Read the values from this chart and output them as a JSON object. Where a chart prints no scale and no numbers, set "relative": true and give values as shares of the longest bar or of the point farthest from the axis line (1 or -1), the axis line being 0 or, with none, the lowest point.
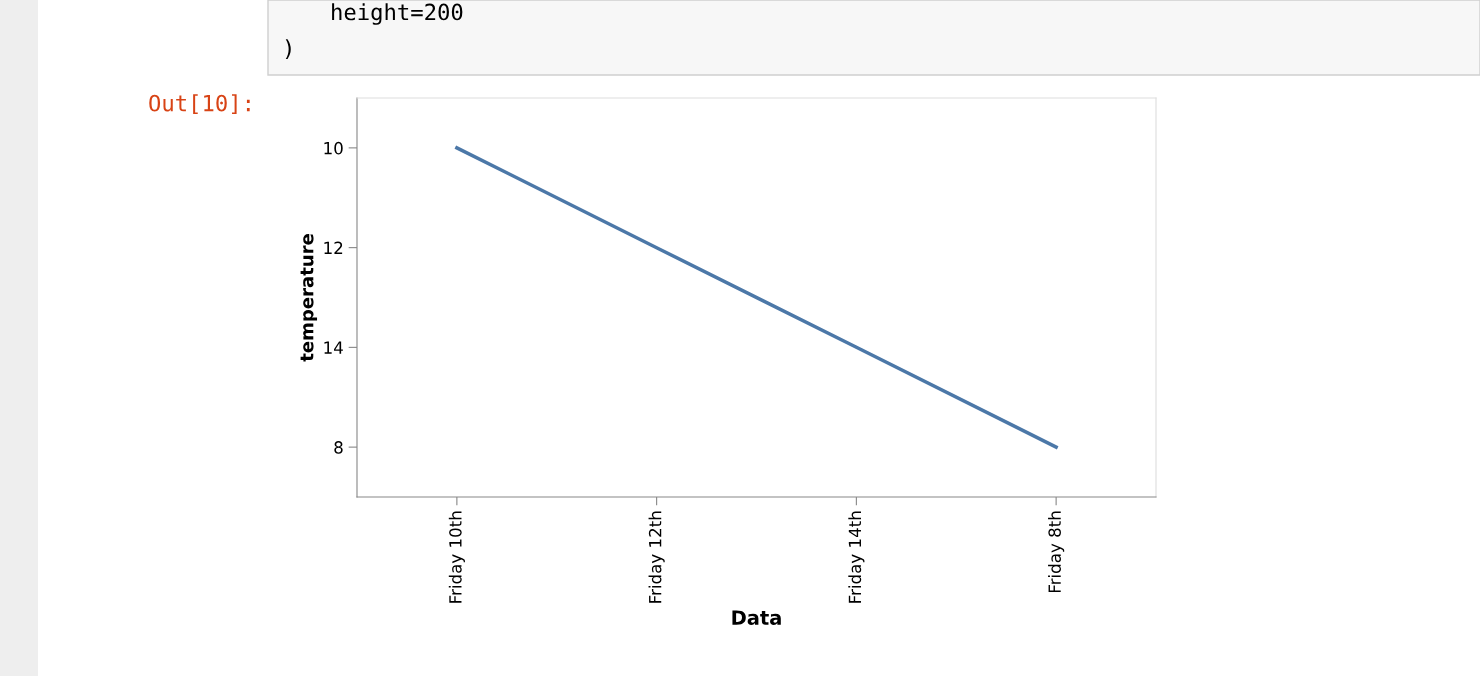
{
  "chart_data": {
    "type": "line",
    "xlabel": "Data",
    "ylabel": "temperature",
    "categories": [
      "Friday 10th",
      "Friday 12th",
      "Friday 14th",
      "Friday 8th"
    ],
    "relative": true,
    "y_categories": [
      "10",
      "12",
      "14",
      "8"
    ],
    "series": [
      {
        "color": "#4c78a8",
        "values": [
          1,
          0.714,
          0.429,
          0.143
        ]
      }
    ],
    "grid": false,
    "marker": "none",
    "line_style": "solid",
    "annotations": [
      "height=200",
      ")",
      "Out[10]:"
    ]
  }
}
